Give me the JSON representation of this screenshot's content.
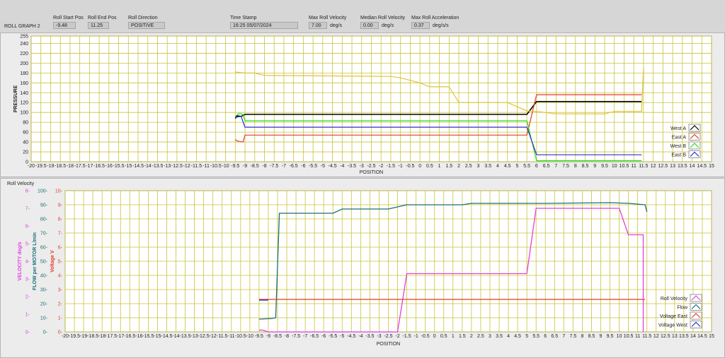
{
  "header": {
    "graph_title": "ROLL GRAPH 2",
    "fields": [
      {
        "label": "Roll Start Pos",
        "value": "-9.48",
        "unit": ""
      },
      {
        "label": "Roll End Pos",
        "value": "11.25",
        "unit": ""
      },
      {
        "label": "Roll Direction",
        "value": "POSITIVE",
        "unit": ""
      },
      {
        "label": "Time Stamp",
        "value": "16:25  05/07/2024",
        "unit": ""
      },
      {
        "label": "Max Roll Velocity",
        "value": "7.00",
        "unit": "deg/s"
      },
      {
        "label": "Median Roll Velocity",
        "value": "0.00",
        "unit": "deg/s"
      },
      {
        "label": "Max Roll Acceleration",
        "value": "0.37",
        "unit": "deg/s/s"
      }
    ]
  },
  "colors": {
    "westA": "#000000",
    "eastA": "#e23b2a",
    "westB": "#22dd22",
    "eastB": "#2b2bd6",
    "yellow": "#e2c23a",
    "velocity": "#e040e0",
    "flow": "#1e6e78",
    "voltageEast": "#e23b2a",
    "voltageWest": "#2b2bd6",
    "grid": "#c9c33a"
  },
  "top_chart": {
    "ylabel": "PRESSURE",
    "xlabel": "POSITION",
    "legend": [
      "West A",
      "East A",
      "West B",
      "East B"
    ]
  },
  "bottom_chart": {
    "section_title": "Roll Velocity",
    "ylabel_velocity": "VELOCITY deg/s",
    "ylabel_flow": "FLOW per MOTOR L/min",
    "ylabel_voltage": "Voltage V",
    "xlabel": "POSITION",
    "legend": [
      "Roll Velocity",
      "Flow",
      "Voltage East",
      "Voltage West"
    ]
  },
  "chart_data": [
    {
      "type": "line",
      "xlabel": "POSITION",
      "ylabel": "PRESSURE",
      "xlim": [
        -20,
        15
      ],
      "ylim": [
        0,
        255
      ],
      "x_ticks": [
        -20,
        -19.5,
        -19,
        -18.5,
        -18,
        -17.5,
        -17,
        -16.5,
        -16,
        -15.5,
        -15,
        -14.5,
        -14,
        -13.5,
        -13,
        -12.5,
        -12,
        -11.5,
        -11,
        -10.5,
        -10,
        -9.5,
        -9,
        -8.5,
        -8,
        -7.5,
        -7,
        -6.5,
        -6,
        -5.5,
        -5,
        -4.5,
        -4,
        -3.5,
        -3,
        -2.5,
        -2,
        -1.5,
        -1,
        -0.5,
        0,
        0.5,
        1,
        1.5,
        2,
        2.5,
        3,
        3.5,
        4,
        4.5,
        5,
        5.5,
        6,
        6.5,
        7,
        7.5,
        8,
        8.5,
        9,
        9.5,
        10,
        10.5,
        11,
        11.5,
        12,
        12.5,
        13,
        13.5,
        14,
        14.5,
        15
      ],
      "y_ticks": [
        0,
        20,
        40,
        60,
        80,
        100,
        120,
        140,
        160,
        180,
        200,
        220,
        240,
        255
      ],
      "grid": true,
      "legend_position": "right",
      "series": [
        {
          "name": "West A",
          "color_key": "westA",
          "points": [
            [
              -9.5,
              88
            ],
            [
              -9.4,
              93
            ],
            [
              -9.2,
              92
            ],
            [
              -9.0,
              96
            ],
            [
              5.5,
              96
            ],
            [
              6.0,
              122
            ],
            [
              11.4,
              122
            ]
          ]
        },
        {
          "name": "East A",
          "color_key": "eastA",
          "points": [
            [
              -9.5,
              45
            ],
            [
              -9.4,
              42
            ],
            [
              -9.1,
              40
            ],
            [
              -9.0,
              54
            ],
            [
              5.5,
              54
            ],
            [
              6.0,
              136
            ],
            [
              11.4,
              136
            ]
          ]
        },
        {
          "name": "West B",
          "color_key": "westB",
          "points": [
            [
              -9.5,
              92
            ],
            [
              -9.3,
              98
            ],
            [
              -9.1,
              96
            ],
            [
              -9.0,
              83
            ],
            [
              5.5,
              83
            ],
            [
              6.0,
              2
            ],
            [
              11.4,
              2
            ]
          ]
        },
        {
          "name": "East B",
          "color_key": "eastB",
          "points": [
            [
              -9.5,
              90
            ],
            [
              -9.2,
              92
            ],
            [
              -9.0,
              70
            ],
            [
              5.5,
              70
            ],
            [
              6.0,
              14
            ],
            [
              11.4,
              14
            ]
          ]
        },
        {
          "color_key": "yellow",
          "points": [
            [
              -9.5,
              182
            ],
            [
              -9,
              180
            ],
            [
              -8.5,
              180
            ],
            [
              -8,
              175
            ],
            [
              -1.5,
              173
            ],
            [
              -1,
              170
            ],
            [
              0,
              160
            ],
            [
              0.5,
              152
            ],
            [
              1,
              152
            ],
            [
              1.5,
              152
            ],
            [
              2,
              120
            ],
            [
              4.5,
              120
            ],
            [
              5.5,
              103
            ],
            [
              6,
              102
            ],
            [
              7,
              97
            ],
            [
              9.5,
              97
            ],
            [
              10,
              102
            ],
            [
              11.4,
              102
            ],
            [
              11.5,
              190
            ],
            [
              11.5,
              165
            ]
          ]
        }
      ]
    },
    {
      "type": "line",
      "xlabel": "POSITION",
      "xlim": [
        -20,
        15
      ],
      "x_ticks": [
        -20,
        -19.5,
        -19,
        -18.5,
        -18,
        -17.5,
        -17,
        -16.5,
        -16,
        -15.5,
        -15,
        -14.5,
        -14,
        -13.5,
        -13,
        -12.5,
        -12,
        -11.5,
        -11,
        -10.5,
        -10,
        -9.5,
        -9,
        -8.5,
        -8,
        -7.5,
        -7,
        -6.5,
        -6,
        -5.5,
        -5,
        -4.5,
        -4,
        -3.5,
        -3,
        -2.5,
        -2,
        -1.5,
        -1,
        -0.5,
        0,
        0.5,
        1,
        1.5,
        2,
        2.5,
        3,
        3.5,
        4,
        4.5,
        5,
        5.5,
        6,
        6.5,
        7,
        7.5,
        8,
        8.5,
        9,
        9.5,
        10,
        10.5,
        11,
        11.5,
        12,
        12.5,
        13,
        13.5,
        14,
        14.5,
        15
      ],
      "y_axes": [
        {
          "label": "VELOCITY deg/s",
          "ticks": [
            0,
            1,
            2,
            3,
            4,
            5,
            6,
            7,
            8
          ],
          "range": [
            0,
            8
          ]
        },
        {
          "label": "FLOW per MOTOR L/min",
          "ticks": [
            0,
            10,
            20,
            30,
            40,
            50,
            60,
            70,
            80,
            90,
            100
          ],
          "range": [
            0,
            100
          ]
        },
        {
          "label": "Voltage V",
          "ticks": [
            0,
            1,
            2,
            3,
            4,
            5,
            6,
            7,
            8,
            9,
            10
          ],
          "range": [
            0,
            10
          ]
        }
      ],
      "grid": true,
      "legend_position": "right",
      "series": [
        {
          "name": "Roll Velocity",
          "axis": "VELOCITY deg/s",
          "color_key": "velocity",
          "points": [
            [
              -9.5,
              0.1
            ],
            [
              -9.3,
              0.1
            ],
            [
              -9.0,
              0
            ],
            [
              -2.0,
              0
            ],
            [
              -1.5,
              3.3
            ],
            [
              5.0,
              3.3
            ],
            [
              5.5,
              7.0
            ],
            [
              10.0,
              7.0
            ],
            [
              10.5,
              5.5
            ],
            [
              11.3,
              5.5
            ],
            [
              11.3,
              0
            ]
          ]
        },
        {
          "name": "Flow",
          "axis": "FLOW per MOTOR L/min",
          "color_key": "flow",
          "points": [
            [
              -9.5,
              9
            ],
            [
              -8.8,
              9.5
            ],
            [
              -8.6,
              10
            ],
            [
              -8.4,
              84
            ],
            [
              -5.5,
              84
            ],
            [
              -5,
              87
            ],
            [
              -2.5,
              87
            ],
            [
              -1.5,
              90
            ],
            [
              1.5,
              90
            ],
            [
              2,
              91
            ],
            [
              6,
              91
            ],
            [
              9.5,
              91.5
            ],
            [
              10.5,
              91
            ],
            [
              11.4,
              90
            ],
            [
              11.5,
              85
            ]
          ]
        },
        {
          "name": "Voltage East",
          "axis": "Voltage V",
          "color_key": "voltageEast",
          "points": [
            [
              -9.5,
              2.3
            ],
            [
              11.4,
              2.3
            ]
          ]
        },
        {
          "name": "Voltage West",
          "axis": "Voltage V",
          "color_key": "voltageWest",
          "points": [
            [
              -9.5,
              2.25
            ],
            [
              -9.0,
              2.25
            ]
          ]
        }
      ]
    }
  ]
}
